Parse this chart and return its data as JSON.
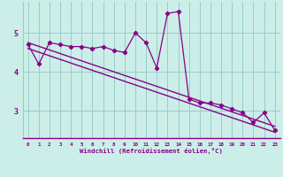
{
  "x": [
    0,
    1,
    2,
    3,
    4,
    5,
    6,
    7,
    8,
    9,
    10,
    11,
    12,
    13,
    14,
    15,
    16,
    17,
    18,
    19,
    20,
    21,
    22,
    23
  ],
  "y_line": [
    4.7,
    4.2,
    4.75,
    4.7,
    4.65,
    4.65,
    4.6,
    4.65,
    4.55,
    4.5,
    5.0,
    4.75,
    4.1,
    5.5,
    5.55,
    3.3,
    3.2,
    3.2,
    3.15,
    3.05,
    2.95,
    2.7,
    2.95,
    2.5
  ],
  "y_trend1_start": 4.75,
  "y_trend1_end": 2.6,
  "y_trend2_start": 4.6,
  "y_trend2_end": 2.45,
  "line_color": "#880088",
  "bg_color": "#cceee8",
  "grid_color": "#99cccc",
  "axis_color": "#880088",
  "xlabel": "Windchill (Refroidissement éolien,°C)",
  "ylim": [
    2.3,
    5.8
  ],
  "yticks": [
    3,
    4,
    5
  ],
  "xlim": [
    0,
    23
  ],
  "xticks": [
    0,
    1,
    2,
    3,
    4,
    5,
    6,
    7,
    8,
    9,
    10,
    11,
    12,
    13,
    14,
    15,
    16,
    17,
    18,
    19,
    20,
    21,
    22,
    23
  ]
}
